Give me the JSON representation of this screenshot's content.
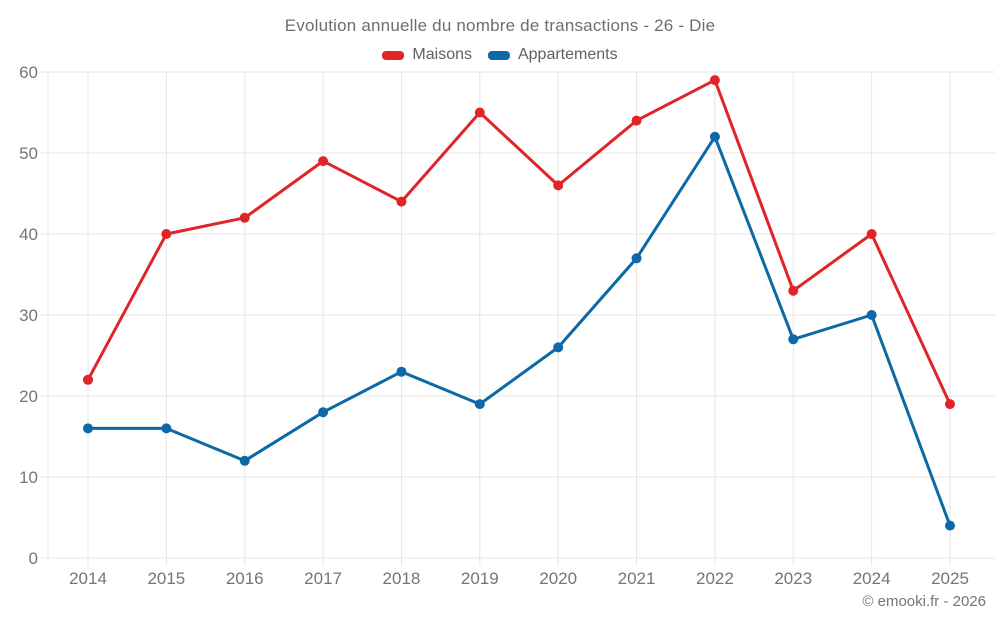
{
  "header": {
    "title": "Evolution annuelle du nombre de transactions - 26 - Die"
  },
  "footer": {
    "copyright": "© emooki.fr - 2026"
  },
  "colors": {
    "maisons": "#e02428",
    "appartements": "#0d69a5",
    "tick_text": "#757575",
    "grid": "#e6e6e6",
    "background": "#ffffff"
  },
  "chart_data": {
    "type": "line",
    "title": "Evolution annuelle du nombre de transactions - 26 - Die",
    "x": [
      "2014",
      "2015",
      "2016",
      "2017",
      "2018",
      "2019",
      "2020",
      "2021",
      "2022",
      "2023",
      "2024",
      "2025"
    ],
    "series": [
      {
        "name": "Maisons",
        "color": "#e02428",
        "values": [
          22,
          40,
          42,
          49,
          44,
          55,
          46,
          54,
          59,
          33,
          40,
          19
        ]
      },
      {
        "name": "Appartements",
        "color": "#0d69a5",
        "values": [
          16,
          16,
          12,
          18,
          23,
          19,
          26,
          37,
          52,
          27,
          30,
          4
        ]
      }
    ],
    "xlabel": "",
    "ylabel": "",
    "ylim": [
      0,
      60
    ],
    "yticks": [
      0,
      10,
      20,
      30,
      40,
      50,
      60
    ],
    "grid": true,
    "legend_position": "top"
  }
}
